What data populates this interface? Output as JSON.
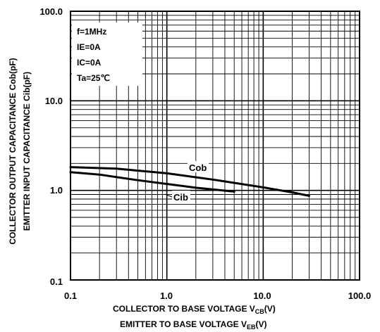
{
  "chart_data": {
    "type": "line",
    "x_scale": "log",
    "y_scale": "log",
    "xlim": [
      0.1,
      100
    ],
    "ylim": [
      0.1,
      100
    ],
    "grid": true,
    "x_ticks": [
      "0.1",
      "1.0",
      "10.0",
      "100.0"
    ],
    "y_ticks": [
      "100.0",
      "10.0",
      "1.0",
      "0.1"
    ],
    "xlabel": {
      "line1_main": "COLLECTOR TO BASE VOLTAGE   V",
      "line1_sub": "CB",
      "line1_unit": "(V)",
      "line2_main": "EMITTER TO BASE VOLTAGE   V",
      "line2_sub": "EB",
      "line2_unit": "(V)"
    },
    "ylabel": {
      "line1": "COLLECTOR OUTPUT CAPACITANCE   Cob(pF)",
      "line2": "EMITTER INPUT CAPACITANCE   Cib(pF)"
    },
    "conditions": [
      "f=1MHz",
      "IE=0A",
      "IC=0A",
      "Ta=25℃"
    ],
    "series": [
      {
        "name": "Cob",
        "x": [
          0.1,
          0.3,
          1,
          3,
          10,
          20,
          30
        ],
        "y": [
          1.82,
          1.75,
          1.55,
          1.32,
          1.08,
          0.95,
          0.87
        ]
      },
      {
        "name": "Cib",
        "x": [
          0.1,
          0.2,
          0.5,
          1,
          2,
          5
        ],
        "y": [
          1.6,
          1.5,
          1.3,
          1.18,
          1.07,
          0.97
        ]
      }
    ]
  }
}
